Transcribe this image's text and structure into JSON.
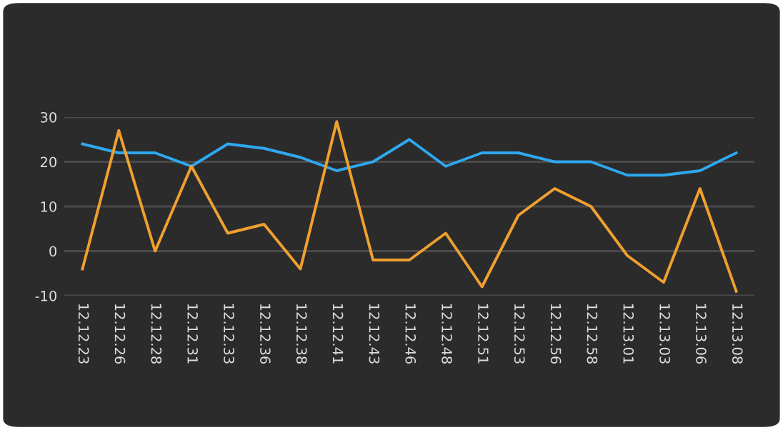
{
  "chart_data": {
    "type": "line",
    "categories": [
      "12.12.23",
      "12.12.26",
      "12.12.28",
      "12.12.31",
      "12.12.33",
      "12.12.36",
      "12.12.38",
      "12.12.41",
      "12.12.43",
      "12.12.46",
      "12.12.48",
      "12.12.51",
      "12.12.53",
      "12.12.56",
      "12.12.58",
      "12.13.01",
      "12.13.03",
      "12.13.06",
      "12.13.08"
    ],
    "series": [
      {
        "color": "#2ea8f0",
        "values": [
          24,
          22,
          22,
          19,
          24,
          23,
          21,
          18,
          20,
          25,
          19,
          22,
          22,
          20,
          20,
          17,
          17,
          18,
          22
        ]
      },
      {
        "color": "#f0a030",
        "values": [
          -4,
          27,
          0,
          19,
          4,
          6,
          -4,
          29,
          -2,
          -2,
          4,
          -8,
          8,
          14,
          10,
          -1,
          -7,
          14,
          -9
        ]
      }
    ],
    "ylim": [
      -10,
      30
    ],
    "yticks": [
      -10,
      0,
      10,
      20,
      30
    ],
    "grid": "y",
    "marker": "none",
    "line_style": "solid"
  }
}
